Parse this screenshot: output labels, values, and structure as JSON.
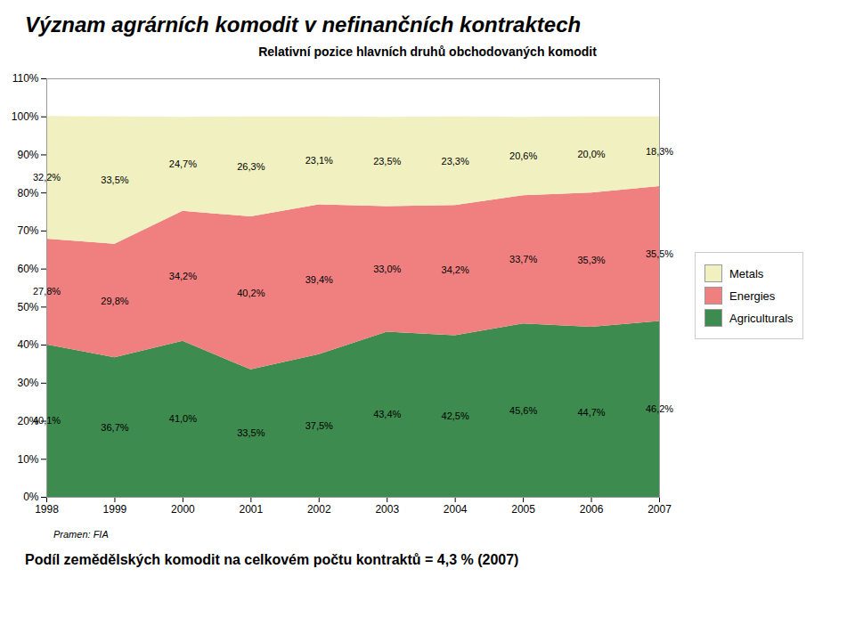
{
  "chart_data": {
    "type": "area",
    "stacked": true,
    "title": "Význam agrárních komodit v nefinančních kontraktech",
    "subtitle": "Relativní pozice hlavních druhů obchodovaných komodit",
    "source": "Pramen: FIA",
    "caption": "Podíl zemědělských komodit na celkovém počtu kontraktů = 4,3 % (2007)",
    "x": [
      1998,
      1999,
      2000,
      2001,
      2002,
      2003,
      2004,
      2005,
      2006,
      2007
    ],
    "series": [
      {
        "name": "Agriculturals",
        "color": "#3d8b4e",
        "values": [
          40.1,
          36.7,
          41.0,
          33.5,
          37.5,
          43.4,
          42.5,
          45.6,
          44.7,
          46.2
        ],
        "value_labels": [
          "40,1%",
          "36,7%",
          "41,0%",
          "33,5%",
          "37,5%",
          "43,4%",
          "42,5%",
          "45,6%",
          "44,7%",
          "46,2%"
        ]
      },
      {
        "name": "Energies",
        "color": "#f08080",
        "values": [
          27.8,
          29.8,
          34.2,
          40.2,
          39.4,
          33.0,
          34.2,
          33.7,
          35.3,
          35.5
        ],
        "value_labels": [
          "27,8%",
          "29,8%",
          "34,2%",
          "40,2%",
          "39,4%",
          "33,0%",
          "34,2%",
          "33,7%",
          "35,3%",
          "35,5%"
        ]
      },
      {
        "name": "Metals",
        "color": "#f0f0c0",
        "values": [
          32.2,
          33.5,
          24.7,
          26.3,
          23.1,
          23.5,
          23.3,
          20.6,
          20.0,
          18.3
        ],
        "value_labels": [
          "32,2%",
          "33,5%",
          "24,7%",
          "26,3%",
          "23,1%",
          "23,5%",
          "23,3%",
          "20,6%",
          "20,0%",
          "18,3%"
        ]
      }
    ],
    "xlim": [
      1998,
      2007
    ],
    "xticks": [
      1998,
      1999,
      2000,
      2001,
      2002,
      2003,
      2004,
      2005,
      2006,
      2007
    ],
    "ylim": [
      0,
      110
    ],
    "yticks": [
      {
        "value": 0,
        "label": "0%"
      },
      {
        "value": 10,
        "label": "10%"
      },
      {
        "value": 20,
        "label": "20%"
      },
      {
        "value": 30,
        "label": "30%"
      },
      {
        "value": 40,
        "label": "40%"
      },
      {
        "value": 50,
        "label": "50%"
      },
      {
        "value": 60,
        "label": "60%"
      },
      {
        "value": 70,
        "label": "70%"
      },
      {
        "value": 80,
        "label": "80%"
      },
      {
        "value": 90,
        "label": "90%"
      },
      {
        "value": 100,
        "label": "100%"
      },
      {
        "value": 110,
        "label": "110%"
      }
    ],
    "data_labels": true,
    "legend": "right",
    "grid": false
  }
}
